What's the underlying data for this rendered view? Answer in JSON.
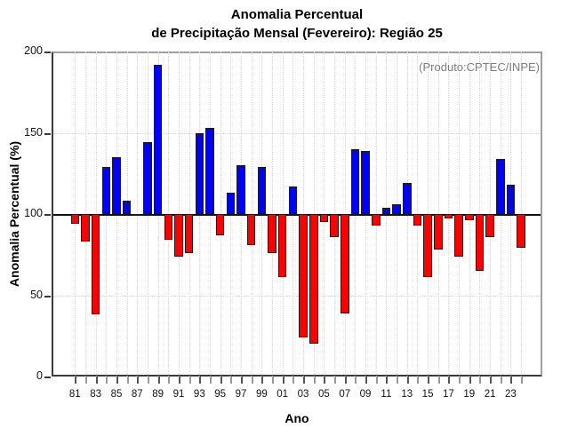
{
  "title": {
    "line1": "Anomalia Percentual",
    "line2": "de Precipitação Mensal (Fevereiro): Região 25"
  },
  "annotation": "(Produto:CPTEC/INPE)",
  "axis": {
    "ylabel": "Anomalia Percentual (%)",
    "xlabel": "Ano"
  },
  "chart_data": {
    "type": "bar",
    "title": "Anomalia Percentual de Precipitação Mensal (Fevereiro): Região 25",
    "xlabel": "Ano",
    "ylabel": "Anomalia Percentual (%)",
    "ylim": [
      0,
      200
    ],
    "yticks": [
      0,
      50,
      100,
      150,
      200
    ],
    "baseline": 100,
    "grid_dotted_y": [
      50,
      150
    ],
    "grid_vertical_per_year": true,
    "x_tick_labels": [
      "81",
      "83",
      "85",
      "87",
      "89",
      "91",
      "93",
      "95",
      "97",
      "99",
      "01",
      "03",
      "05",
      "07",
      "09",
      "11",
      "13",
      "15",
      "17",
      "19",
      "21",
      "23"
    ],
    "years": [
      1981,
      1982,
      1983,
      1984,
      1985,
      1986,
      1987,
      1988,
      1989,
      1990,
      1991,
      1992,
      1993,
      1994,
      1995,
      1996,
      1997,
      1998,
      1999,
      2000,
      2001,
      2002,
      2003,
      2004,
      2005,
      2006,
      2007,
      2008,
      2009,
      2010,
      2011,
      2012,
      2013,
      2014,
      2015,
      2016,
      2017,
      2018,
      2019,
      2020,
      2021,
      2022,
      2023,
      2024
    ],
    "values": [
      94,
      83,
      38,
      129,
      135,
      108,
      99,
      144,
      192,
      84,
      74,
      76,
      150,
      153,
      87,
      113,
      130,
      81,
      129,
      76,
      61,
      117,
      24,
      20,
      95,
      86,
      39,
      140,
      139,
      93,
      104,
      106,
      119,
      93,
      61,
      78,
      97,
      74,
      96,
      65,
      86,
      134,
      118,
      79
    ],
    "colors": {
      "above_baseline": "#0000ff",
      "below_baseline": "#ff0000",
      "bar_border": "#1c1c1c",
      "baseline_line": "#111111",
      "grid": "#d9d9d9",
      "annotation_text": "#7d7d7d"
    }
  }
}
